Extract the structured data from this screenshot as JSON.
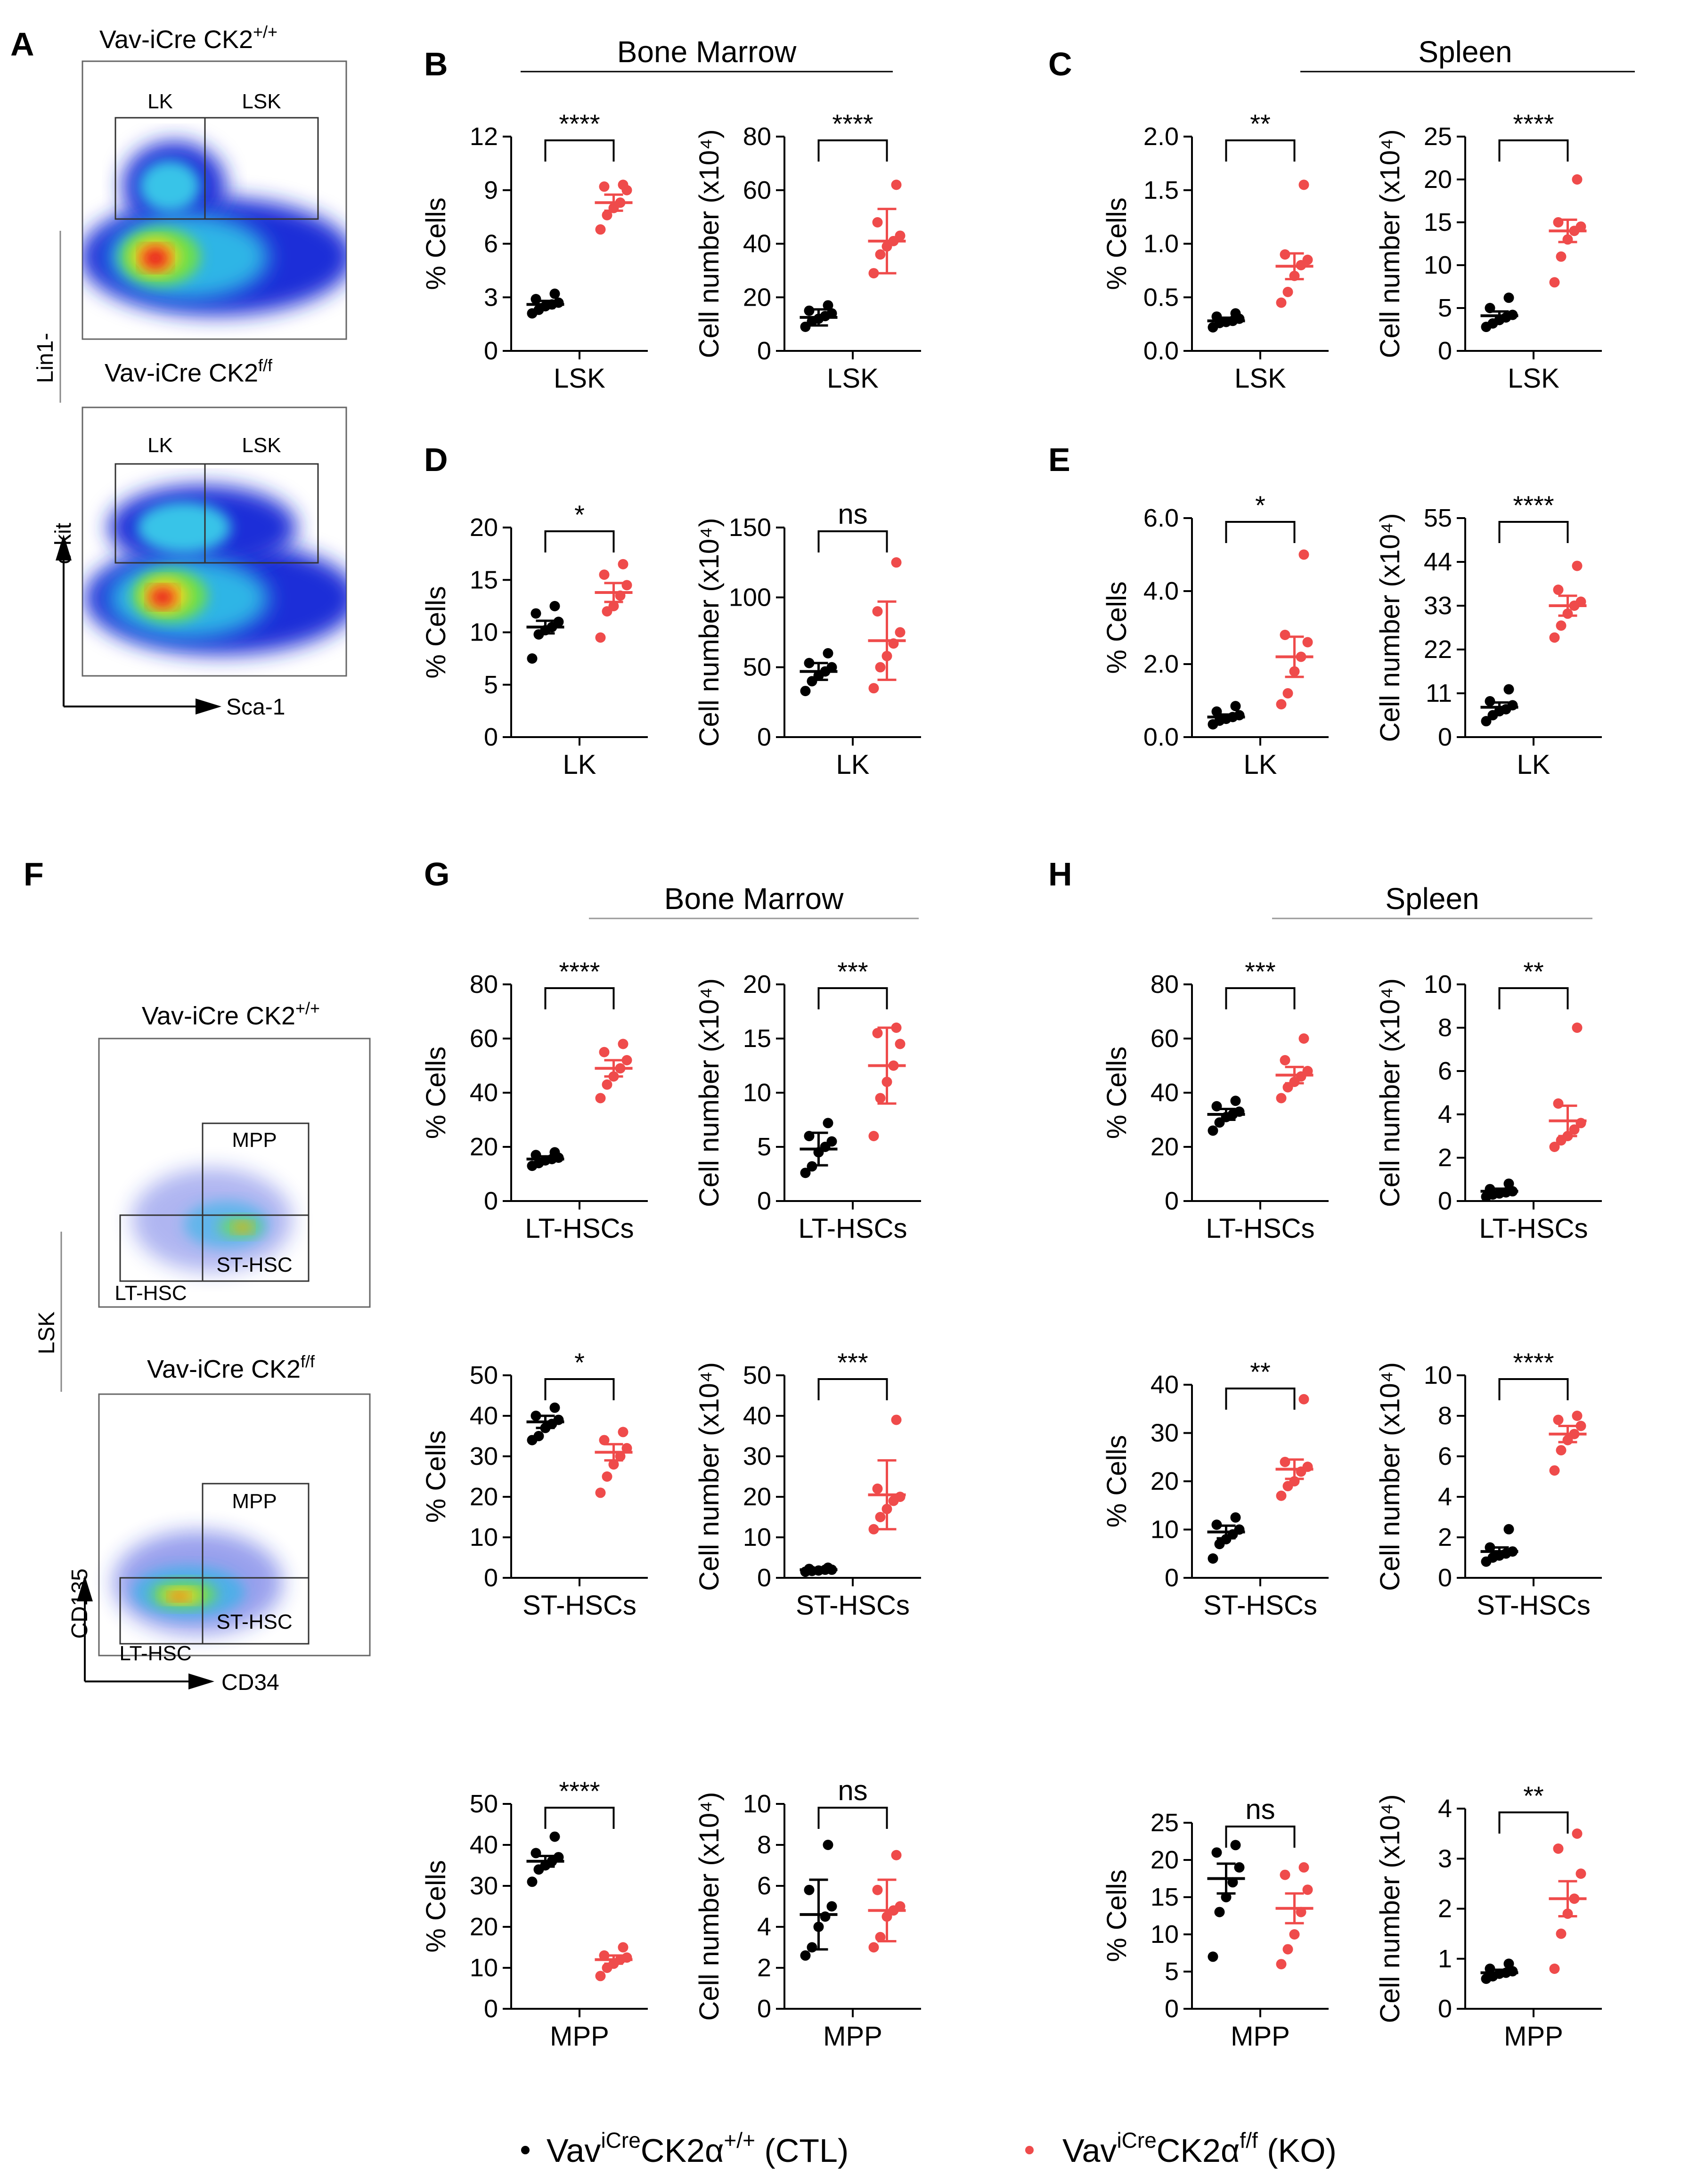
{
  "panel_letters": {
    "A": "A",
    "B": "B",
    "C": "C",
    "D": "D",
    "E": "E",
    "F": "F",
    "G": "G",
    "H": "H"
  },
  "section_titles": {
    "bm_top": "Bone Marrow",
    "spleen_top": "Spleen",
    "bm_bottom": "Bone Marrow",
    "spleen_bottom": "Spleen"
  },
  "facs": {
    "A": {
      "top_title_base": "Vav-iCre CK2",
      "top_title_sup": "+/+",
      "bottom_title_base": "Vav-iCre CK2",
      "bottom_title_sup": "f/f",
      "gates": [
        "LK",
        "LSK"
      ],
      "side_label": "Lin1-",
      "y_axis": "c-kit",
      "x_axis": "Sca-1"
    },
    "F": {
      "top_title_base": "Vav-iCre CK2",
      "top_title_sup": "+/+",
      "bottom_title_base": "Vav-iCre CK2",
      "bottom_title_sup": "f/f",
      "gates": [
        "MPP",
        "LT-HSC",
        "ST-HSC"
      ],
      "side_label": "LSK",
      "y_axis": "CD135",
      "x_axis": "CD34"
    }
  },
  "legend": {
    "ctl": {
      "base": "Vav",
      "sup1": "iCre",
      "mid": "CK2α",
      "sup2": "+/+",
      "tail": " (CTL)",
      "color": "#000000"
    },
    "ko": {
      "base": "Vav",
      "sup1": "iCre",
      "mid": "CK2α",
      "sup2": "f/f",
      "tail": " (KO)",
      "color": "#ef4b4b"
    }
  },
  "colors": {
    "ctl": "#000000",
    "ko": "#ef4b4b"
  },
  "chart_data": [
    {
      "id": "B1",
      "type": "scatter",
      "ylabel": "% Cells",
      "xlabel": "LSK",
      "ylim": [
        0,
        12
      ],
      "yticks": [
        "0",
        "3",
        "6",
        "9",
        "12"
      ],
      "sig": "****",
      "series": [
        {
          "name": "CTL",
          "values": [
            2.1,
            2.3,
            2.5,
            2.6,
            2.7,
            2.9,
            3.2
          ],
          "mean": 2.6,
          "err": 0.2
        },
        {
          "name": "KO",
          "values": [
            6.8,
            7.6,
            8.0,
            8.3,
            9.0,
            9.2,
            9.3
          ],
          "mean": 8.3,
          "err": 0.45
        }
      ]
    },
    {
      "id": "B2",
      "type": "scatter",
      "ylabel": "Cell number (x10⁴)",
      "xlabel": "LSK",
      "ylim": [
        0,
        80
      ],
      "yticks": [
        "0",
        "20",
        "40",
        "60",
        "80"
      ],
      "sig": "****",
      "series": [
        {
          "name": "CTL",
          "values": [
            9,
            11,
            12,
            13,
            14,
            15,
            17
          ],
          "mean": 12.5,
          "err": 3
        },
        {
          "name": "KO",
          "values": [
            29,
            36,
            39,
            41,
            43,
            48,
            62
          ],
          "mean": 41,
          "err": 12
        }
      ]
    },
    {
      "id": "C1",
      "type": "scatter",
      "ylabel": "% Cells",
      "xlabel": "LSK",
      "ylim": [
        0,
        2
      ],
      "yticks": [
        "0.0",
        "0.5",
        "1.0",
        "1.5",
        "2.0"
      ],
      "sig": "**",
      "series": [
        {
          "name": "CTL",
          "values": [
            0.22,
            0.26,
            0.27,
            0.28,
            0.3,
            0.32,
            0.35
          ],
          "mean": 0.28,
          "err": 0.03
        },
        {
          "name": "KO",
          "values": [
            0.45,
            0.55,
            0.7,
            0.8,
            0.85,
            0.9,
            1.55
          ],
          "mean": 0.79,
          "err": 0.12
        }
      ]
    },
    {
      "id": "C2",
      "type": "scatter",
      "ylabel": "Cell number (x10⁴)",
      "xlabel": "LSK",
      "ylim": [
        0,
        25
      ],
      "yticks": [
        "0",
        "5",
        "10",
        "15",
        "20",
        "25"
      ],
      "sig": "****",
      "series": [
        {
          "name": "CTL",
          "values": [
            2.8,
            3.2,
            3.6,
            3.9,
            4.2,
            5.0,
            6.2
          ],
          "mean": 4.1,
          "err": 0.5
        },
        {
          "name": "KO",
          "values": [
            8,
            11,
            13,
            14,
            14.5,
            15,
            20
          ],
          "mean": 14,
          "err": 1.3
        }
      ]
    },
    {
      "id": "D1",
      "type": "scatter",
      "ylabel": "% Cells",
      "xlabel": "LK",
      "ylim": [
        0,
        20
      ],
      "yticks": [
        "0",
        "5",
        "10",
        "15",
        "20"
      ],
      "sig": "*",
      "series": [
        {
          "name": "CTL",
          "values": [
            7.5,
            9.8,
            10.2,
            10.5,
            11,
            11.8,
            12.5
          ],
          "mean": 10.5,
          "err": 0.6
        },
        {
          "name": "KO",
          "values": [
            9.5,
            12,
            12.5,
            13.5,
            14.5,
            15.5,
            16.5
          ],
          "mean": 13.8,
          "err": 0.9
        }
      ]
    },
    {
      "id": "D2",
      "type": "scatter",
      "ylabel": "Cell number (x10⁴)",
      "xlabel": "LK",
      "ylim": [
        0,
        150
      ],
      "yticks": [
        "0",
        "50",
        "100",
        "150"
      ],
      "sig": "ns",
      "series": [
        {
          "name": "CTL",
          "values": [
            33,
            40,
            44,
            47,
            50,
            53,
            60
          ],
          "mean": 47,
          "err": 6
        },
        {
          "name": "KO",
          "values": [
            35,
            50,
            58,
            67,
            75,
            90,
            125
          ],
          "mean": 69,
          "err": 28
        }
      ]
    },
    {
      "id": "E1",
      "type": "scatter",
      "ylabel": "% Cells",
      "xlabel": "LK",
      "ylim": [
        0,
        6
      ],
      "yticks": [
        "0.0",
        "2.0",
        "4.0",
        "6.0"
      ],
      "sig": "*",
      "series": [
        {
          "name": "CTL",
          "values": [
            0.35,
            0.45,
            0.5,
            0.55,
            0.6,
            0.7,
            0.85
          ],
          "mean": 0.55,
          "err": 0.07
        },
        {
          "name": "KO",
          "values": [
            0.9,
            1.2,
            1.8,
            2.2,
            2.6,
            2.8,
            5.0
          ],
          "mean": 2.2,
          "err": 0.55
        }
      ]
    },
    {
      "id": "E2",
      "type": "scatter",
      "ylabel": "Cell number (x10⁴)",
      "xlabel": "LK",
      "ylim": [
        0,
        55
      ],
      "yticks": [
        "0",
        "11",
        "22",
        "33",
        "44",
        "55"
      ],
      "sig": "****",
      "series": [
        {
          "name": "CTL",
          "values": [
            4,
            5.5,
            6.5,
            7,
            8,
            9,
            12
          ],
          "mean": 7.5,
          "err": 1.2
        },
        {
          "name": "KO",
          "values": [
            25,
            28,
            31,
            33,
            34,
            37,
            43
          ],
          "mean": 33,
          "err": 2.5
        }
      ]
    },
    {
      "id": "G1",
      "type": "scatter",
      "ylabel": "% Cells",
      "xlabel": "LT-HSCs",
      "ylim": [
        0,
        80
      ],
      "yticks": [
        "0",
        "20",
        "40",
        "60",
        "80"
      ],
      "sig": "****",
      "series": [
        {
          "name": "CTL",
          "values": [
            13,
            14,
            15,
            15.5,
            16,
            17,
            18
          ],
          "mean": 15.5,
          "err": 1
        },
        {
          "name": "KO",
          "values": [
            38,
            43,
            46,
            49,
            52,
            55,
            58
          ],
          "mean": 49,
          "err": 3
        }
      ]
    },
    {
      "id": "G2",
      "type": "scatter",
      "ylabel": "Cell number (x10⁴)",
      "xlabel": "LT-HSCs",
      "ylim": [
        0,
        20
      ],
      "yticks": [
        "0",
        "5",
        "10",
        "15",
        "20"
      ],
      "sig": "***",
      "series": [
        {
          "name": "CTL",
          "values": [
            2.6,
            3.2,
            4.5,
            5.0,
            5.5,
            6,
            7.2
          ],
          "mean": 4.8,
          "err": 1.5
        },
        {
          "name": "KO",
          "values": [
            6,
            9.5,
            11,
            12.5,
            14.5,
            15.5,
            16
          ],
          "mean": 12.5,
          "err": 3.5
        }
      ]
    },
    {
      "id": "H1",
      "type": "scatter",
      "ylabel": "% Cells",
      "xlabel": "LT-HSCs",
      "ylim": [
        0,
        80
      ],
      "yticks": [
        "0",
        "20",
        "40",
        "60",
        "80"
      ],
      "sig": "***",
      "series": [
        {
          "name": "CTL",
          "values": [
            26,
            29,
            31,
            32,
            33,
            35,
            37
          ],
          "mean": 32,
          "err": 2
        },
        {
          "name": "KO",
          "values": [
            38,
            42,
            44,
            46,
            48,
            52,
            60
          ],
          "mean": 46.5,
          "err": 3
        }
      ]
    },
    {
      "id": "H2",
      "type": "scatter",
      "ylabel": "Cell number (x10⁴)",
      "xlabel": "LT-HSCs",
      "ylim": [
        0,
        10
      ],
      "yticks": [
        "0",
        "2",
        "4",
        "6",
        "8",
        "10"
      ],
      "sig": "**",
      "series": [
        {
          "name": "CTL",
          "values": [
            0.2,
            0.3,
            0.35,
            0.4,
            0.45,
            0.55,
            0.8
          ],
          "mean": 0.45,
          "err": 0.12
        },
        {
          "name": "KO",
          "values": [
            2.5,
            2.8,
            3.0,
            3.3,
            3.6,
            4.5,
            8.0
          ],
          "mean": 3.7,
          "err": 0.7
        }
      ]
    },
    {
      "id": "G3",
      "type": "scatter",
      "ylabel": "% Cells",
      "xlabel": "ST-HSCs",
      "ylim": [
        0,
        50
      ],
      "yticks": [
        "0",
        "10",
        "20",
        "30",
        "40",
        "50"
      ],
      "sig": "*",
      "series": [
        {
          "name": "CTL",
          "values": [
            34,
            35,
            37,
            38,
            39,
            40,
            42
          ],
          "mean": 38.5,
          "err": 1.5
        },
        {
          "name": "KO",
          "values": [
            21,
            25,
            28,
            30,
            32,
            34,
            36
          ],
          "mean": 31,
          "err": 2
        }
      ]
    },
    {
      "id": "G4",
      "type": "scatter",
      "ylabel": "Cell number (x10⁴)",
      "xlabel": "ST-HSCs",
      "ylim": [
        0,
        50
      ],
      "yticks": [
        "0",
        "10",
        "20",
        "30",
        "40",
        "50"
      ],
      "sig": "***",
      "series": [
        {
          "name": "CTL",
          "values": [
            1.5,
            1.7,
            1.8,
            2.0,
            2.0,
            2.2,
            2.5
          ],
          "mean": 2,
          "err": 0.3
        },
        {
          "name": "KO",
          "values": [
            12,
            15,
            17,
            19,
            20,
            22,
            39
          ],
          "mean": 20.5,
          "err": 8.5
        }
      ]
    },
    {
      "id": "H3",
      "type": "scatter",
      "ylabel": "% Cells",
      "xlabel": "ST-HSCs",
      "ylim": [
        0,
        40
      ],
      "yticks": [
        "0",
        "10",
        "20",
        "30",
        "40"
      ],
      "sig": "**",
      "series": [
        {
          "name": "CTL",
          "values": [
            4,
            7,
            8,
            9,
            10,
            11,
            12.5
          ],
          "mean": 9.5,
          "err": 1.3
        },
        {
          "name": "KO",
          "values": [
            17,
            19,
            20,
            22,
            23,
            24,
            37
          ],
          "mean": 22.5,
          "err": 2
        }
      ]
    },
    {
      "id": "H4",
      "type": "scatter",
      "ylabel": "Cell number (x10⁴)",
      "xlabel": "ST-HSCs",
      "ylim": [
        0,
        10
      ],
      "yticks": [
        "0",
        "2",
        "4",
        "6",
        "8",
        "10"
      ],
      "sig": "****",
      "series": [
        {
          "name": "CTL",
          "values": [
            0.8,
            1.0,
            1.1,
            1.2,
            1.3,
            1.5,
            2.4
          ],
          "mean": 1.3,
          "err": 0.2
        },
        {
          "name": "KO",
          "values": [
            5.3,
            6.3,
            6.8,
            7.1,
            7.5,
            7.8,
            8.0
          ],
          "mean": 7.1,
          "err": 0.4
        }
      ]
    },
    {
      "id": "G5",
      "type": "scatter",
      "ylabel": "% Cells",
      "xlabel": "MPP",
      "ylim": [
        0,
        50
      ],
      "yticks": [
        "0",
        "10",
        "20",
        "30",
        "40",
        "50"
      ],
      "sig": "****",
      "series": [
        {
          "name": "CTL",
          "values": [
            31,
            34,
            35,
            36,
            37,
            38,
            42
          ],
          "mean": 36,
          "err": 1.3
        },
        {
          "name": "KO",
          "values": [
            8,
            10,
            11,
            12,
            12.5,
            13,
            15
          ],
          "mean": 12,
          "err": 1
        }
      ]
    },
    {
      "id": "G6",
      "type": "scatter",
      "ylabel": "Cell number (x10⁴)",
      "xlabel": "MPP",
      "ylim": [
        0,
        10
      ],
      "yticks": [
        "0",
        "2",
        "4",
        "6",
        "8",
        "10"
      ],
      "sig": "ns",
      "series": [
        {
          "name": "CTL",
          "values": [
            2.6,
            3.0,
            4.0,
            4.5,
            5.0,
            5.8,
            8.0
          ],
          "mean": 4.6,
          "err": 1.7
        },
        {
          "name": "KO",
          "values": [
            3.0,
            3.5,
            4.5,
            4.8,
            5.0,
            5.8,
            7.5
          ],
          "mean": 4.8,
          "err": 1.5
        }
      ]
    },
    {
      "id": "H5",
      "type": "scatter",
      "ylabel": "% Cells",
      "xlabel": "MPP",
      "ylim": [
        0,
        25
      ],
      "yticks": [
        "0",
        "5",
        "10",
        "15",
        "20",
        "25"
      ],
      "sig": "ns",
      "series": [
        {
          "name": "CTL",
          "values": [
            7,
            13,
            15,
            17,
            19,
            21,
            22
          ],
          "mean": 17.5,
          "err": 2
        },
        {
          "name": "KO",
          "values": [
            6,
            8,
            10,
            13,
            16,
            18,
            19
          ],
          "mean": 13.5,
          "err": 2
        }
      ]
    },
    {
      "id": "H6",
      "type": "scatter",
      "ylabel": "Cell number (x10⁴)",
      "xlabel": "MPP",
      "ylim": [
        0,
        4
      ],
      "yticks": [
        "0",
        "1",
        "2",
        "3",
        "4"
      ],
      "sig": "**",
      "series": [
        {
          "name": "CTL",
          "values": [
            0.6,
            0.65,
            0.7,
            0.72,
            0.75,
            0.8,
            0.9
          ],
          "mean": 0.72,
          "err": 0.06
        },
        {
          "name": "KO",
          "values": [
            0.8,
            1.5,
            1.9,
            2.2,
            2.7,
            3.2,
            3.5
          ],
          "mean": 2.2,
          "err": 0.35
        }
      ]
    }
  ]
}
